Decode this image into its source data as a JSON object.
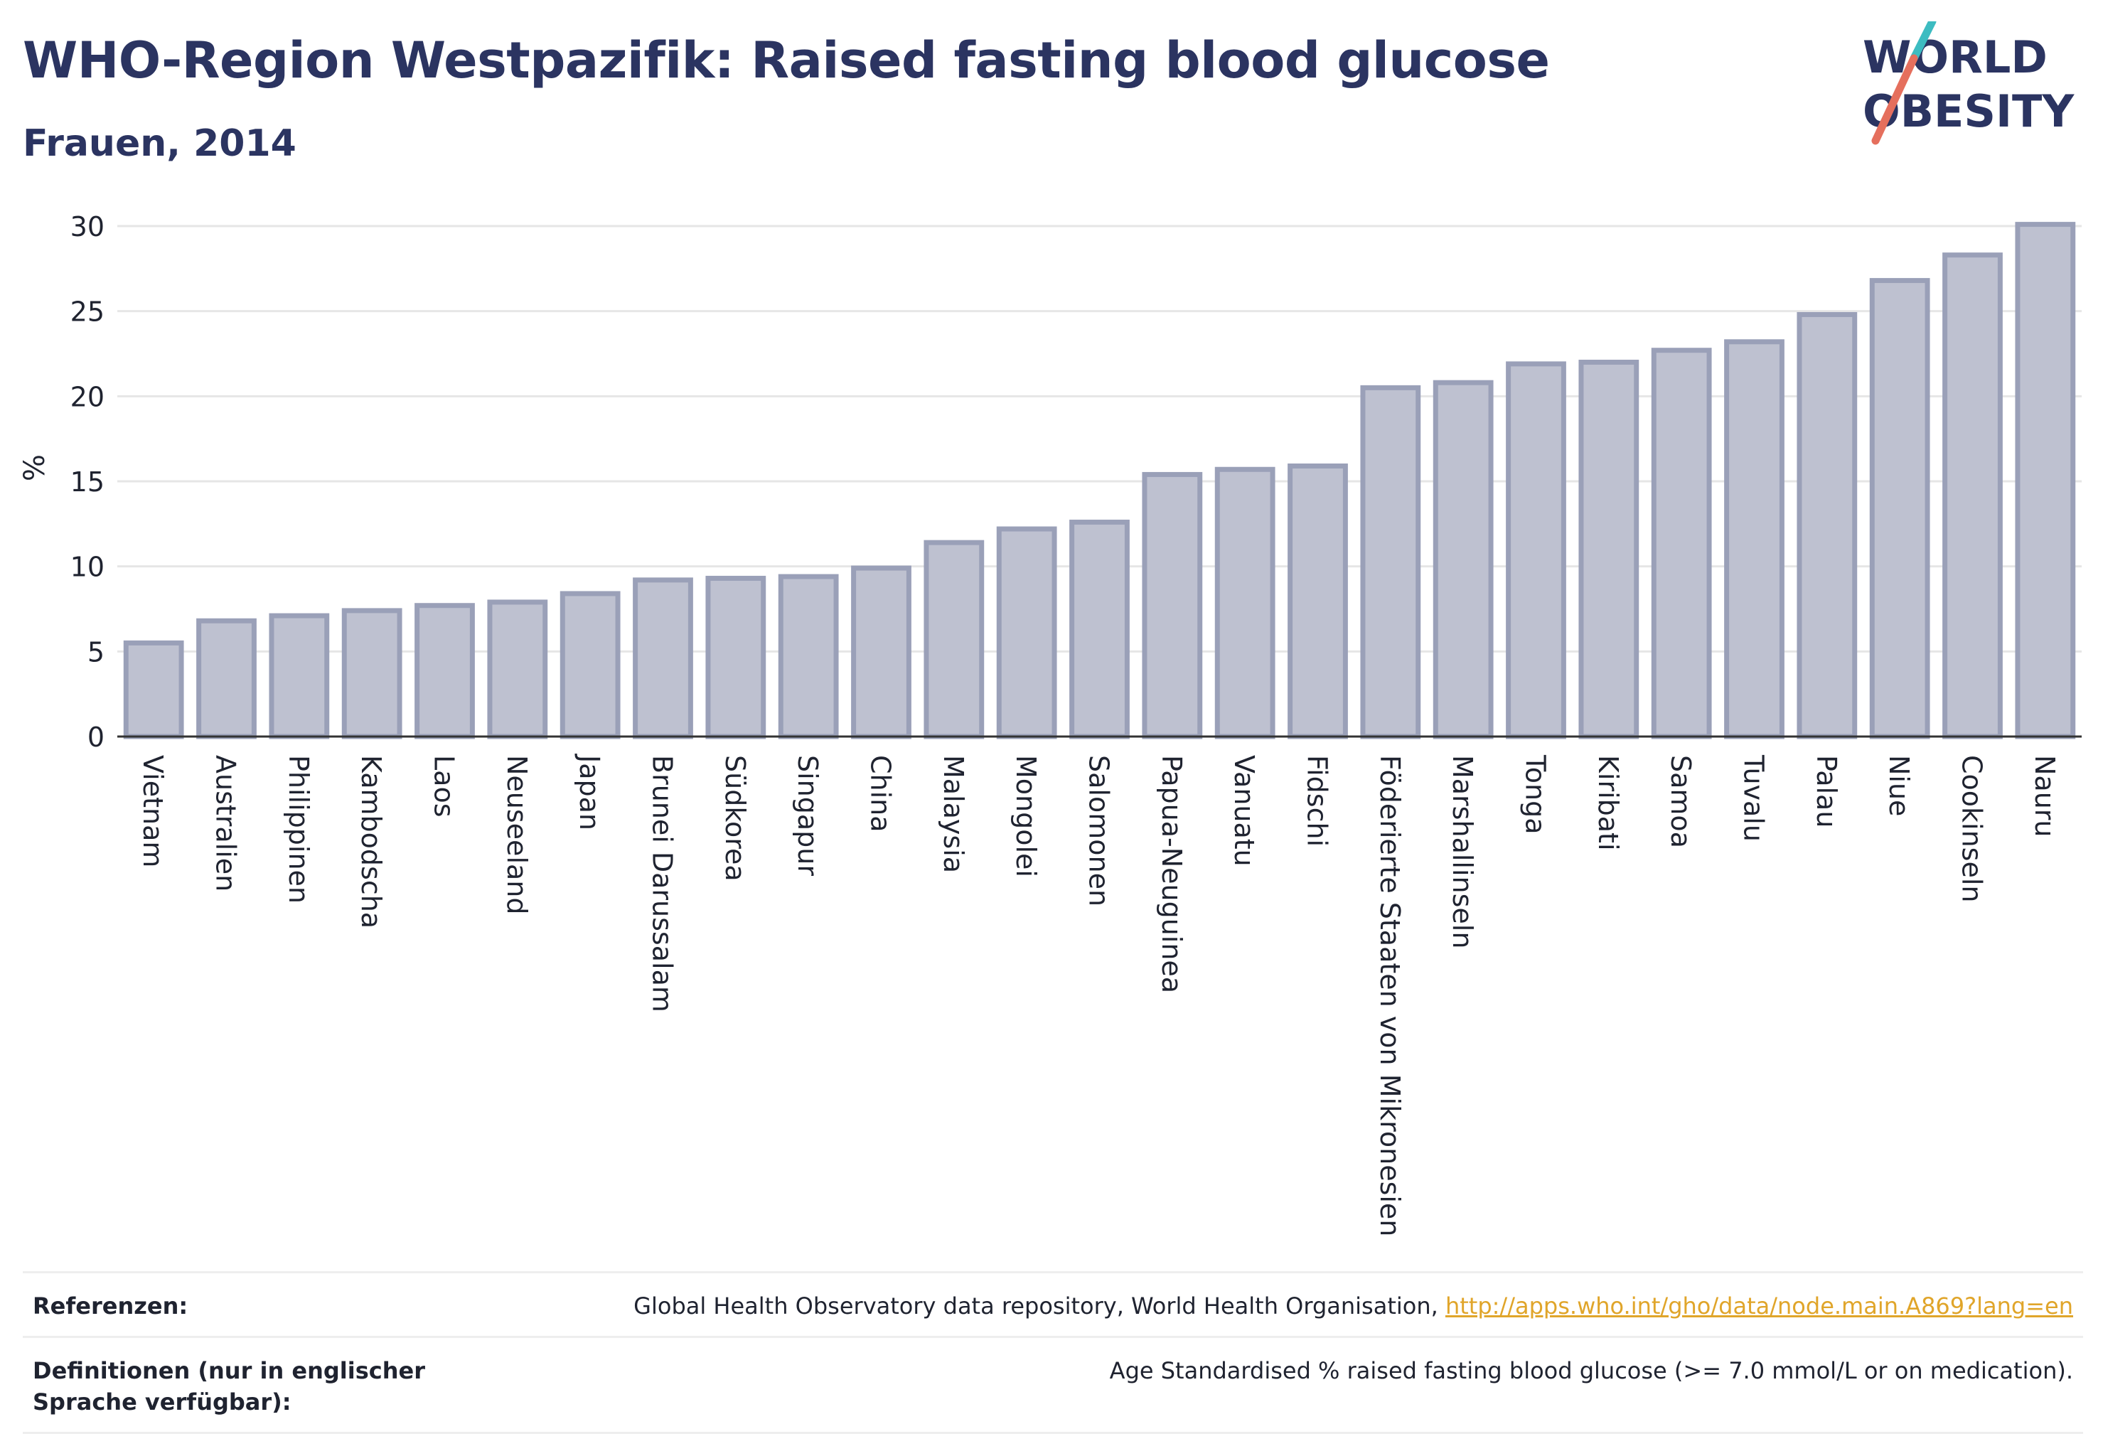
{
  "header": {
    "title": "WHO-Region Westpazifik: Raised fasting blood glucose",
    "subtitle": "Frauen, 2014"
  },
  "logo": {
    "line1": "WORLD",
    "line2": "OBESITY",
    "accent_teal": "#3dbcc1",
    "accent_coral": "#e56f5d"
  },
  "chart_data": {
    "type": "bar",
    "title": "WHO-Region Westpazifik: Raised fasting blood glucose",
    "subtitle": "Frauen, 2014",
    "xlabel": "",
    "ylabel": "%",
    "ylim": [
      0,
      30
    ],
    "yticks": [
      0,
      5,
      10,
      15,
      20,
      25,
      30
    ],
    "grid": true,
    "categories": [
      "Vietnam",
      "Australien",
      "Philippinen",
      "Kambodscha",
      "Laos",
      "Neuseeland",
      "Japan",
      "Brunei Darussalam",
      "Südkorea",
      "Singapur",
      "China",
      "Malaysia",
      "Mongolei",
      "Salomonen",
      "Papua-Neuguinea",
      "Vanuatu",
      "Fidschi",
      "Föderierte Staaten von Mikronesien",
      "Marshallinseln",
      "Tonga",
      "Kiribati",
      "Samoa",
      "Tuvalu",
      "Palau",
      "Niue",
      "Cookinseln",
      "Nauru"
    ],
    "values": [
      5.5,
      6.8,
      7.1,
      7.4,
      7.7,
      7.9,
      8.4,
      9.2,
      9.3,
      9.4,
      9.9,
      11.4,
      12.2,
      12.6,
      15.4,
      15.7,
      15.9,
      20.5,
      20.8,
      21.9,
      22.0,
      22.7,
      23.2,
      24.8,
      26.8,
      28.3,
      30.1
    ],
    "bar_fill": "#bec1d0",
    "bar_stroke": "#9aa0b8"
  },
  "references": {
    "ref_label": "Referenzen:",
    "ref_text": "Global Health Observatory data repository, World Health Organisation, ",
    "ref_link": "http://apps.who.int/gho/data/node.main.A869?lang=en",
    "def_label": "Definitionen (nur in englischer Sprache verfügbar):",
    "def_text": "Age Standardised % raised fasting blood glucose (>= 7.0 mmol/L or on medication)."
  }
}
